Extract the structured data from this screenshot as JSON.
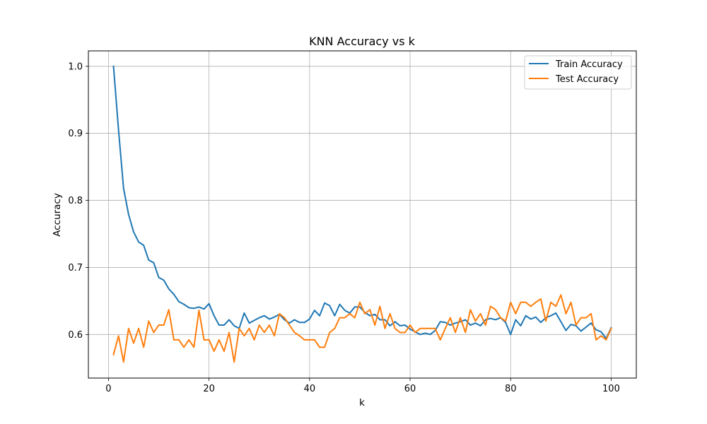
{
  "chart_data": {
    "type": "line",
    "title": "KNN Accuracy vs k",
    "xlabel": "k",
    "ylabel": "Accuracy",
    "xlim": [
      -4,
      105
    ],
    "ylim": [
      0.535,
      1.023
    ],
    "xticks": [
      0,
      20,
      40,
      60,
      80,
      100
    ],
    "yticks": [
      0.6,
      0.7,
      0.8,
      0.9,
      1.0
    ],
    "xtick_labels": [
      "0",
      "20",
      "40",
      "60",
      "80",
      "100"
    ],
    "ytick_labels": [
      "0.6",
      "0.7",
      "0.8",
      "0.9",
      "1.0"
    ],
    "grid": true,
    "legend_position": "upper right",
    "x": [
      1,
      2,
      3,
      4,
      5,
      6,
      7,
      8,
      9,
      10,
      11,
      12,
      13,
      14,
      15,
      16,
      17,
      18,
      19,
      20,
      21,
      22,
      23,
      24,
      25,
      26,
      27,
      28,
      29,
      30,
      31,
      32,
      33,
      34,
      35,
      36,
      37,
      38,
      39,
      40,
      41,
      42,
      43,
      44,
      45,
      46,
      47,
      48,
      49,
      50,
      51,
      52,
      53,
      54,
      55,
      56,
      57,
      58,
      59,
      60,
      61,
      62,
      63,
      64,
      65,
      66,
      67,
      68,
      69,
      70,
      71,
      72,
      73,
      74,
      75,
      76,
      77,
      78,
      79,
      80,
      81,
      82,
      83,
      84,
      85,
      86,
      87,
      88,
      89,
      90,
      91,
      92,
      93,
      94,
      95,
      96,
      97,
      98,
      99,
      100
    ],
    "series": [
      {
        "name": "Train Accuracy",
        "color": "#1f77b4",
        "values": [
          1.0,
          0.905,
          0.818,
          0.779,
          0.753,
          0.738,
          0.733,
          0.711,
          0.707,
          0.685,
          0.681,
          0.668,
          0.66,
          0.649,
          0.645,
          0.64,
          0.639,
          0.641,
          0.638,
          0.646,
          0.628,
          0.614,
          0.614,
          0.622,
          0.613,
          0.609,
          0.632,
          0.617,
          0.621,
          0.625,
          0.628,
          0.623,
          0.626,
          0.63,
          0.622,
          0.617,
          0.622,
          0.618,
          0.618,
          0.623,
          0.636,
          0.628,
          0.647,
          0.643,
          0.628,
          0.645,
          0.636,
          0.632,
          0.641,
          0.641,
          0.633,
          0.628,
          0.63,
          0.622,
          0.622,
          0.613,
          0.619,
          0.613,
          0.614,
          0.608,
          0.604,
          0.6,
          0.602,
          0.6,
          0.606,
          0.619,
          0.618,
          0.614,
          0.617,
          0.619,
          0.622,
          0.614,
          0.617,
          0.613,
          0.622,
          0.624,
          0.622,
          0.625,
          0.618,
          0.6,
          0.622,
          0.613,
          0.628,
          0.623,
          0.626,
          0.618,
          0.625,
          0.628,
          0.632,
          0.619,
          0.606,
          0.615,
          0.613,
          0.605,
          0.611,
          0.617,
          0.607,
          0.604,
          0.594,
          0.61
        ]
      },
      {
        "name": "Test Accuracy",
        "color": "#ff7f0e",
        "values": [
          0.57,
          0.598,
          0.559,
          0.609,
          0.587,
          0.609,
          0.581,
          0.62,
          0.603,
          0.614,
          0.614,
          0.637,
          0.592,
          0.592,
          0.581,
          0.592,
          0.581,
          0.636,
          0.592,
          0.592,
          0.575,
          0.592,
          0.575,
          0.603,
          0.559,
          0.609,
          0.598,
          0.609,
          0.592,
          0.614,
          0.603,
          0.614,
          0.598,
          0.631,
          0.625,
          0.614,
          0.603,
          0.598,
          0.592,
          0.592,
          0.592,
          0.581,
          0.581,
          0.603,
          0.609,
          0.625,
          0.625,
          0.631,
          0.625,
          0.648,
          0.631,
          0.637,
          0.614,
          0.642,
          0.609,
          0.631,
          0.609,
          0.603,
          0.603,
          0.614,
          0.603,
          0.609,
          0.609,
          0.609,
          0.609,
          0.592,
          0.609,
          0.625,
          0.603,
          0.625,
          0.603,
          0.637,
          0.62,
          0.631,
          0.614,
          0.642,
          0.637,
          0.625,
          0.62,
          0.648,
          0.631,
          0.648,
          0.648,
          0.642,
          0.648,
          0.653,
          0.62,
          0.648,
          0.642,
          0.659,
          0.631,
          0.648,
          0.614,
          0.625,
          0.625,
          0.631,
          0.592,
          0.598,
          0.592,
          0.609
        ]
      }
    ]
  }
}
